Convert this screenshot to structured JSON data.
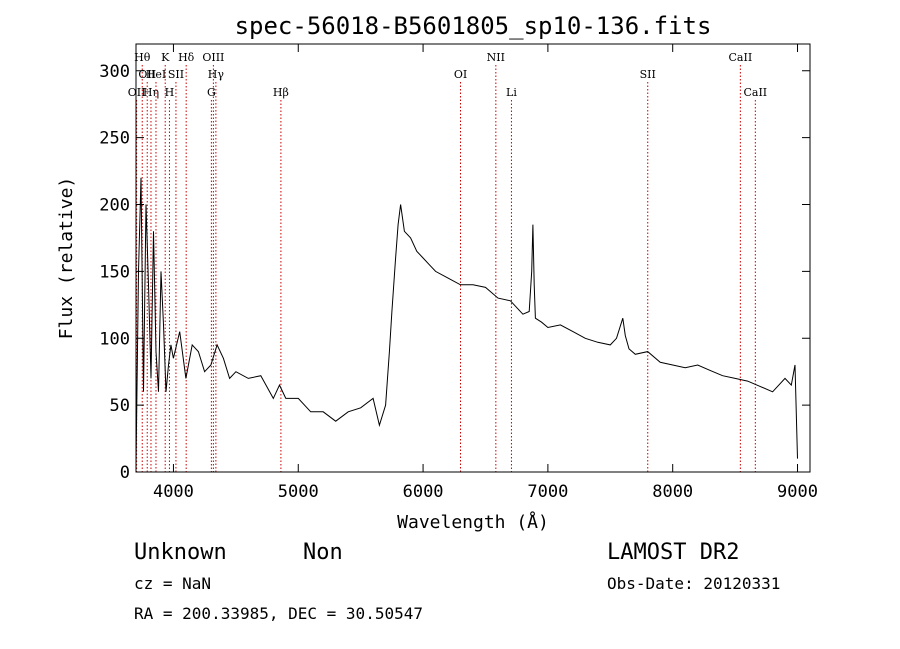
{
  "chart_data": {
    "type": "line",
    "title": "spec-56018-B5601805_sp10-136.fits",
    "xlabel": "Wavelength (Å)",
    "ylabel": "Flux (relative)",
    "xlim": [
      3700,
      9100
    ],
    "ylim": [
      0,
      320
    ],
    "xticks": [
      4000,
      5000,
      6000,
      7000,
      8000,
      9000
    ],
    "yticks": [
      0,
      50,
      100,
      150,
      200,
      250,
      300
    ],
    "grid": false,
    "line_color": "#000000",
    "marker_color": "#cc0000",
    "series": [
      {
        "x": [
          3700,
          3720,
          3740,
          3760,
          3780,
          3800,
          3820,
          3840,
          3860,
          3880,
          3900,
          3920,
          3940,
          3960,
          3980,
          4000,
          4050,
          4100,
          4150,
          4200,
          4250,
          4300,
          4350,
          4400,
          4450,
          4500,
          4600,
          4700,
          4800,
          4850,
          4900,
          5000,
          5100,
          5200,
          5300,
          5400,
          5500,
          5600,
          5650,
          5700,
          5730,
          5750,
          5780,
          5800,
          5820,
          5850,
          5900,
          5950,
          6000,
          6050,
          6100,
          6200,
          6300,
          6400,
          6500,
          6600,
          6700,
          6800,
          6850,
          6870,
          6880,
          6890,
          6900,
          6950,
          7000,
          7100,
          7200,
          7300,
          7400,
          7500,
          7550,
          7600,
          7620,
          7650,
          7700,
          7800,
          7900,
          8000,
          8100,
          8200,
          8300,
          8400,
          8500,
          8600,
          8700,
          8800,
          8900,
          8950,
          8980,
          9000
        ],
        "y": [
          5,
          150,
          220,
          60,
          200,
          140,
          70,
          180,
          90,
          60,
          150,
          110,
          60,
          80,
          95,
          85,
          105,
          70,
          95,
          90,
          75,
          80,
          95,
          85,
          70,
          75,
          70,
          72,
          55,
          65,
          55,
          55,
          45,
          45,
          38,
          45,
          48,
          55,
          35,
          50,
          90,
          120,
          160,
          185,
          200,
          180,
          175,
          165,
          160,
          155,
          150,
          145,
          140,
          140,
          138,
          130,
          128,
          118,
          120,
          150,
          185,
          140,
          115,
          112,
          108,
          110,
          105,
          100,
          97,
          95,
          100,
          115,
          102,
          92,
          88,
          90,
          82,
          80,
          78,
          80,
          76,
          72,
          70,
          68,
          64,
          60,
          70,
          65,
          80,
          10
        ]
      }
    ],
    "lines": [
      {
        "x": 3705,
        "label": "OII",
        "row": 3
      },
      {
        "x": 3750,
        "label": "Hθ",
        "row": 1
      },
      {
        "x": 3790,
        "label": "OII",
        "row": 2
      },
      {
        "x": 3820,
        "label": "Hη",
        "row": 3
      },
      {
        "x": 3860,
        "label": "HeI",
        "row": 2
      },
      {
        "x": 3934,
        "label": "K",
        "row": 1
      },
      {
        "x": 3968,
        "label": "H",
        "row": 3
      },
      {
        "x": 4020,
        "label": "SII",
        "row": 2
      },
      {
        "x": 4102,
        "label": "Hδ",
        "row": 1
      },
      {
        "x": 4304,
        "label": "G",
        "row": 3
      },
      {
        "x": 4320,
        "label": "OIII",
        "row": 1
      },
      {
        "x": 4340,
        "label": "Hγ",
        "row": 2
      },
      {
        "x": 4861,
        "label": "Hβ",
        "row": 3
      },
      {
        "x": 6300,
        "label": "OI",
        "row": 2
      },
      {
        "x": 6583,
        "label": "NII",
        "row": 1
      },
      {
        "x": 6708,
        "label": "Li",
        "row": 3
      },
      {
        "x": 7800,
        "label": "SII",
        "row": 2
      },
      {
        "x": 8542,
        "label": "CaII",
        "row": 1
      },
      {
        "x": 8662,
        "label": "CaII",
        "row": 3
      }
    ]
  },
  "info": {
    "class": "Unknown",
    "subclass": "Non",
    "survey": "LAMOST DR2",
    "cz": "cz = NaN",
    "obs_date": "Obs-Date: 20120331",
    "coords": "RA = 200.33985, DEC =  30.50547"
  }
}
